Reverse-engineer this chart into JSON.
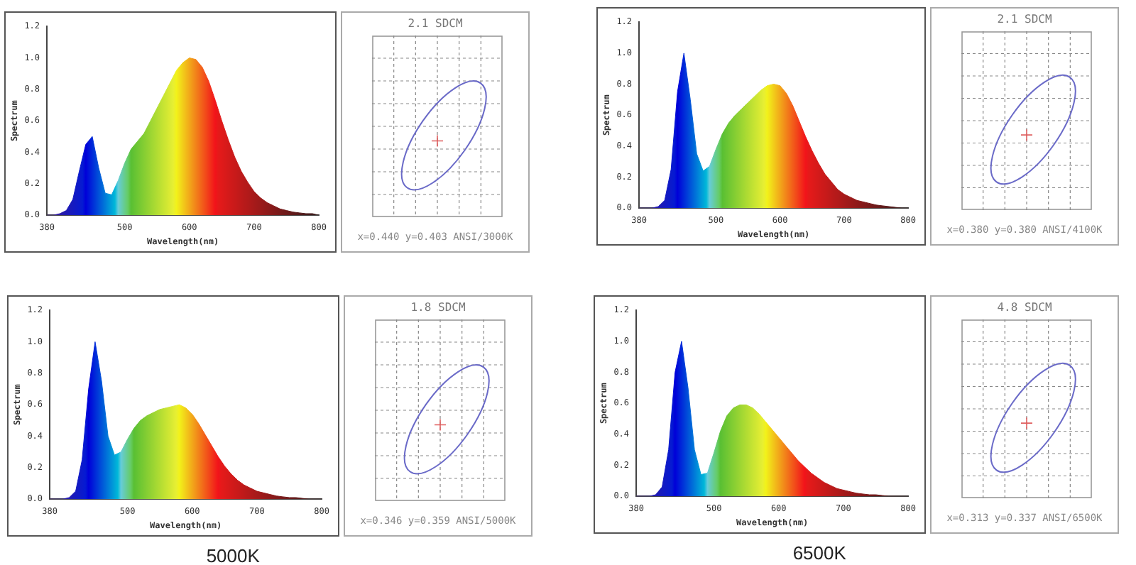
{
  "chart_data": [
    {
      "type": "area",
      "xlabel": "Wavelength(nm)",
      "ylabel": "Spectrum",
      "xlim": [
        380,
        800
      ],
      "xticks": [
        380,
        500,
        600,
        700,
        800
      ],
      "ylim": [
        0,
        1.2
      ],
      "yticks": [
        {
          "value": 0,
          "label": "0.0"
        },
        {
          "value": 0.2,
          "label": "0.2"
        },
        {
          "value": 0.4,
          "label": "0.4"
        },
        {
          "value": 0.6,
          "label": "0.6"
        },
        {
          "value": 0.8,
          "label": "0.8"
        },
        {
          "value": 1,
          "label": "1.0"
        },
        {
          "value": 1.2,
          "label": "1.2"
        }
      ],
      "grid": false,
      "legend": false,
      "x": [
        380,
        390,
        400,
        410,
        420,
        430,
        440,
        450,
        460,
        470,
        480,
        490,
        500,
        510,
        520,
        530,
        540,
        550,
        560,
        570,
        580,
        590,
        600,
        610,
        620,
        630,
        640,
        650,
        660,
        670,
        680,
        690,
        700,
        710,
        720,
        730,
        740,
        750,
        760,
        770,
        780,
        790,
        800
      ],
      "values": [
        0,
        0,
        0.01,
        0.03,
        0.1,
        0.28,
        0.45,
        0.5,
        0.3,
        0.14,
        0.13,
        0.22,
        0.33,
        0.42,
        0.47,
        0.52,
        0.6,
        0.68,
        0.76,
        0.84,
        0.92,
        0.97,
        1.0,
        0.99,
        0.94,
        0.85,
        0.73,
        0.6,
        0.48,
        0.37,
        0.28,
        0.21,
        0.15,
        0.11,
        0.08,
        0.06,
        0.04,
        0.03,
        0.02,
        0.015,
        0.01,
        0.01,
        0
      ]
    },
    {
      "type": "other",
      "title": "2.1 SDCM",
      "annotations": [
        "x=0.440 y=0.403 ANSI/3000K"
      ]
    },
    {
      "type": "area",
      "xlabel": "Wavelength(nm)",
      "ylabel": "Spectrum",
      "xlim": [
        380,
        800
      ],
      "xticks": [
        380,
        500,
        600,
        700,
        800
      ],
      "ylim": [
        0,
        1.2
      ],
      "yticks": [
        {
          "value": 0,
          "label": "0.0"
        },
        {
          "value": 0.2,
          "label": "0.2"
        },
        {
          "value": 0.4,
          "label": "0.4"
        },
        {
          "value": 0.6,
          "label": "0.6"
        },
        {
          "value": 0.8,
          "label": "0.8"
        },
        {
          "value": 1,
          "label": "1.0"
        },
        {
          "value": 1.2,
          "label": "1.2"
        }
      ],
      "grid": false,
      "legend": false,
      "x": [
        380,
        390,
        400,
        410,
        420,
        430,
        440,
        450,
        460,
        470,
        480,
        490,
        500,
        510,
        520,
        530,
        540,
        550,
        560,
        570,
        580,
        590,
        600,
        610,
        620,
        630,
        640,
        650,
        660,
        670,
        680,
        690,
        700,
        710,
        720,
        730,
        740,
        750,
        760,
        770,
        780,
        790,
        800
      ],
      "values": [
        0,
        0,
        0,
        0.01,
        0.05,
        0.25,
        0.75,
        1.0,
        0.7,
        0.35,
        0.24,
        0.27,
        0.38,
        0.48,
        0.55,
        0.6,
        0.64,
        0.68,
        0.72,
        0.76,
        0.79,
        0.8,
        0.79,
        0.74,
        0.66,
        0.56,
        0.46,
        0.37,
        0.29,
        0.22,
        0.17,
        0.12,
        0.09,
        0.07,
        0.05,
        0.04,
        0.03,
        0.02,
        0.015,
        0.01,
        0.005,
        0,
        0
      ]
    },
    {
      "type": "other",
      "title": "2.1 SDCM",
      "annotations": [
        "x=0.380 y=0.380 ANSI/4100K"
      ]
    },
    {
      "type": "area",
      "xlabel": "Wavelength(nm)",
      "ylabel": "Spectrum",
      "xlim": [
        380,
        800
      ],
      "xticks": [
        380,
        500,
        600,
        700,
        800
      ],
      "ylim": [
        0,
        1.2
      ],
      "yticks": [
        {
          "value": 0,
          "label": "0.0"
        },
        {
          "value": 0.2,
          "label": "0.2"
        },
        {
          "value": 0.4,
          "label": "0.4"
        },
        {
          "value": 0.6,
          "label": "0.6"
        },
        {
          "value": 0.8,
          "label": "0.8"
        },
        {
          "value": 1,
          "label": "1.0"
        },
        {
          "value": 1.2,
          "label": "1.2"
        }
      ],
      "grid": false,
      "legend": false,
      "annotations": [
        "5000K"
      ],
      "x": [
        380,
        390,
        400,
        410,
        420,
        430,
        440,
        450,
        460,
        470,
        480,
        490,
        500,
        510,
        520,
        530,
        540,
        550,
        560,
        570,
        580,
        590,
        600,
        610,
        620,
        630,
        640,
        650,
        660,
        670,
        680,
        690,
        700,
        710,
        720,
        730,
        740,
        750,
        760,
        770,
        780,
        790,
        800
      ],
      "values": [
        0,
        0,
        0,
        0.01,
        0.05,
        0.25,
        0.7,
        1.0,
        0.75,
        0.4,
        0.28,
        0.3,
        0.38,
        0.45,
        0.5,
        0.53,
        0.55,
        0.57,
        0.58,
        0.59,
        0.6,
        0.58,
        0.54,
        0.48,
        0.41,
        0.34,
        0.27,
        0.21,
        0.16,
        0.12,
        0.09,
        0.07,
        0.05,
        0.04,
        0.03,
        0.02,
        0.015,
        0.01,
        0.01,
        0.005,
        0,
        0,
        0
      ]
    },
    {
      "type": "other",
      "title": "1.8 SDCM",
      "annotations": [
        "x=0.346 y=0.359 ANSI/5000K"
      ]
    },
    {
      "type": "area",
      "xlabel": "Wavelength(nm)",
      "ylabel": "Spectrum",
      "xlim": [
        380,
        800
      ],
      "xticks": [
        380,
        500,
        600,
        700,
        800
      ],
      "ylim": [
        0,
        1.2
      ],
      "yticks": [
        {
          "value": 0,
          "label": "0.0"
        },
        {
          "value": 0.2,
          "label": "0.2"
        },
        {
          "value": 0.4,
          "label": "0.4"
        },
        {
          "value": 0.6,
          "label": "0.6"
        },
        {
          "value": 0.8,
          "label": "0.8"
        },
        {
          "value": 1,
          "label": "1.0"
        },
        {
          "value": 1.2,
          "label": "1.2"
        }
      ],
      "grid": false,
      "legend": false,
      "annotations": [
        "6500K"
      ],
      "x": [
        380,
        390,
        400,
        410,
        420,
        430,
        440,
        450,
        460,
        470,
        480,
        490,
        500,
        510,
        520,
        530,
        540,
        550,
        560,
        570,
        580,
        590,
        600,
        610,
        620,
        630,
        640,
        650,
        660,
        670,
        680,
        690,
        700,
        710,
        720,
        730,
        740,
        750,
        760,
        770,
        780,
        790,
        800
      ],
      "values": [
        0,
        0,
        0,
        0.01,
        0.06,
        0.3,
        0.8,
        1.0,
        0.7,
        0.3,
        0.14,
        0.15,
        0.28,
        0.42,
        0.52,
        0.57,
        0.59,
        0.59,
        0.57,
        0.53,
        0.48,
        0.43,
        0.38,
        0.33,
        0.28,
        0.23,
        0.19,
        0.15,
        0.12,
        0.09,
        0.07,
        0.05,
        0.04,
        0.03,
        0.02,
        0.015,
        0.01,
        0.01,
        0.005,
        0,
        0,
        0,
        0
      ]
    },
    {
      "type": "other",
      "title": "4.8 SDCM",
      "annotations": [
        "x=0.313 y=0.337 ANSI/6500K"
      ]
    }
  ]
}
